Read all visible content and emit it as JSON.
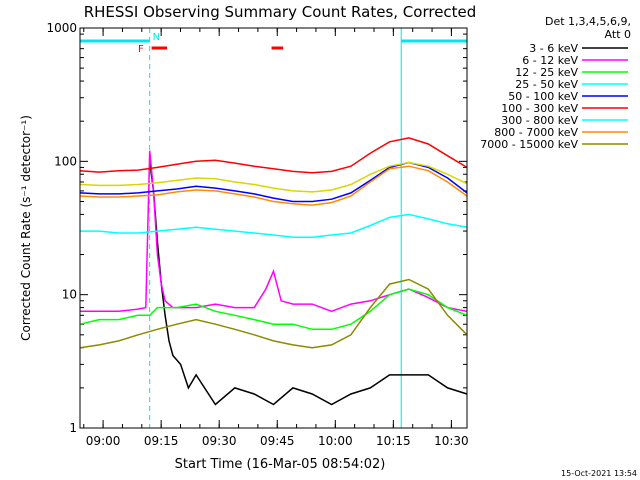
{
  "chart_data": {
    "type": "line",
    "title": "RHESSI Observing Summary Count Rates, Corrected",
    "xlabel": "Start Time (16-Mar-05 08:54:02)",
    "ylabel": "Corrected Count Rate (s⁻¹ detector⁻¹)",
    "yscale": "log",
    "ylim": [
      1,
      1000
    ],
    "xlim_minutes": [
      0,
      100
    ],
    "x_tick_labels": [
      "09:00",
      "09:15",
      "09:30",
      "09:45",
      "10:00",
      "10:15",
      "10:30"
    ],
    "x_tick_minutes": [
      5.97,
      20.97,
      35.97,
      50.97,
      65.97,
      80.97,
      95.97
    ],
    "y_tick_labels": [
      "1",
      "10",
      "100",
      "1000"
    ],
    "y_tick_values": [
      1,
      10,
      100,
      1000
    ],
    "legend_header": [
      "Det 1,3,4,5,6,9,",
      "Att 0"
    ],
    "legend_position": "right",
    "timestamp": "15-Oct-2021 13:54",
    "flags": {
      "labels": [
        {
          "text": "F",
          "color": "#ff0000"
        },
        {
          "text": "N",
          "color": "#00e5ee"
        }
      ],
      "night_periods_minutes": [
        [
          0,
          18
        ],
        [
          83,
          100
        ]
      ],
      "flare_bars_minutes": [
        [
          18.5,
          22.5
        ],
        [
          49.5,
          52.5
        ]
      ],
      "cyan_color": "#00e5ee",
      "red_color": "#ff0000"
    },
    "vlines_minutes": [
      {
        "x": 0,
        "style": "solid"
      },
      {
        "x": 18,
        "style": "dashed"
      },
      {
        "x": 83,
        "style": "solid"
      },
      {
        "x": 100,
        "style": "dashed"
      }
    ],
    "series": [
      {
        "name": "3 - 6 keV",
        "color": "#000000",
        "x": [
          0,
          17.5,
          18,
          19,
          20,
          21,
          22,
          23,
          24,
          26,
          28,
          30,
          35,
          40,
          45,
          50,
          55,
          60,
          65,
          70,
          75,
          80,
          85,
          90,
          95,
          100
        ],
        "y": [
          null,
          null,
          100,
          60,
          25,
          12,
          7,
          4.5,
          3.5,
          3,
          2,
          2.5,
          1.5,
          2,
          1.8,
          1.5,
          2,
          1.8,
          1.5,
          1.8,
          2,
          2.5,
          2.5,
          2.5,
          2,
          1.8
        ]
      },
      {
        "name": "6 - 12 keV",
        "color": "#ff00ff",
        "x": [
          0,
          5,
          10,
          15,
          17,
          18,
          19,
          20,
          21,
          22,
          24,
          26,
          30,
          35,
          40,
          45,
          48,
          50,
          52,
          55,
          60,
          65,
          70,
          75,
          80,
          85,
          90,
          95,
          100
        ],
        "y": [
          7.5,
          7.5,
          7.5,
          7.8,
          8,
          120,
          60,
          20,
          12,
          9,
          8,
          8,
          8,
          8.5,
          8,
          8,
          11,
          15,
          9,
          8.5,
          8.5,
          7.5,
          8.5,
          9,
          10,
          11,
          9.5,
          8,
          7.5
        ]
      },
      {
        "name": "12 - 25 keV",
        "color": "#00ff00",
        "x": [
          0,
          5,
          10,
          15,
          18,
          20,
          25,
          30,
          35,
          40,
          45,
          50,
          55,
          60,
          65,
          70,
          75,
          80,
          85,
          90,
          95,
          100
        ],
        "y": [
          6,
          6.5,
          6.5,
          7,
          7,
          8,
          8,
          8.5,
          7.5,
          7,
          6.5,
          6,
          6,
          5.5,
          5.5,
          6,
          7.5,
          10,
          11,
          10,
          8,
          7
        ]
      },
      {
        "name": "25 - 50 keV",
        "color": "#00ffff",
        "x": [
          0,
          5,
          10,
          15,
          20,
          25,
          30,
          35,
          40,
          45,
          50,
          55,
          60,
          65,
          70,
          75,
          80,
          85,
          90,
          95,
          100
        ],
        "y": [
          30,
          30,
          29,
          29,
          30,
          31,
          32,
          31,
          30,
          29,
          28,
          27,
          27,
          28,
          29,
          33,
          38,
          40,
          37,
          34,
          32
        ]
      },
      {
        "name": "50 - 100 keV",
        "color": "#0000ff",
        "x": [
          0,
          5,
          10,
          15,
          20,
          25,
          30,
          35,
          40,
          45,
          50,
          55,
          60,
          65,
          70,
          75,
          80,
          85,
          90,
          95,
          100
        ],
        "y": [
          58,
          57,
          57,
          58,
          60,
          62,
          65,
          63,
          60,
          57,
          53,
          50,
          50,
          52,
          58,
          72,
          90,
          98,
          90,
          75,
          58
        ]
      },
      {
        "name": "100 - 300 keV",
        "color": "#ff0000",
        "x": [
          0,
          5,
          10,
          15,
          20,
          25,
          30,
          35,
          40,
          45,
          50,
          55,
          60,
          65,
          70,
          75,
          80,
          85,
          90,
          95,
          100
        ],
        "y": [
          85,
          83,
          85,
          86,
          90,
          95,
          100,
          102,
          97,
          92,
          88,
          84,
          82,
          84,
          92,
          115,
          140,
          150,
          135,
          110,
          90
        ]
      },
      {
        "name": "300 - 800 keV",
        "color": "#00ffff",
        "x": [
          0,
          10,
          20,
          30,
          40,
          50,
          60,
          70,
          80,
          90,
          100
        ],
        "y": [
          null,
          null,
          null,
          null,
          null,
          null,
          null,
          null,
          null,
          null,
          null
        ]
      },
      {
        "name": "800 - 7000 keV",
        "color": "#ff8c00",
        "x": [
          0,
          5,
          10,
          15,
          20,
          25,
          30,
          35,
          40,
          45,
          50,
          55,
          60,
          65,
          70,
          75,
          80,
          85,
          90,
          95,
          100
        ],
        "y": [
          55,
          54,
          54,
          55,
          56,
          59,
          61,
          60,
          57,
          54,
          50,
          48,
          47,
          49,
          55,
          70,
          88,
          92,
          85,
          70,
          55
        ]
      },
      {
        "name": "7000 - 15000 keV",
        "color": "#8b8b00",
        "x": [
          0,
          5,
          10,
          15,
          20,
          25,
          30,
          35,
          40,
          45,
          50,
          55,
          60,
          65,
          70,
          75,
          80,
          85,
          90,
          95,
          100
        ],
        "y": [
          4,
          4.2,
          4.5,
          5,
          5.5,
          6,
          6.5,
          6,
          5.5,
          5,
          4.5,
          4.2,
          4,
          4.2,
          5,
          8,
          12,
          13,
          11,
          7,
          5
        ]
      },
      {
        "name": "",
        "color": "#d8d800",
        "x": [
          0,
          5,
          10,
          15,
          20,
          25,
          30,
          35,
          40,
          45,
          50,
          55,
          60,
          65,
          70,
          75,
          80,
          85,
          90,
          95,
          100
        ],
        "y": [
          67,
          66,
          66,
          67,
          69,
          72,
          75,
          74,
          70,
          67,
          63,
          60,
          59,
          61,
          67,
          80,
          92,
          98,
          92,
          80,
          68
        ]
      }
    ]
  }
}
